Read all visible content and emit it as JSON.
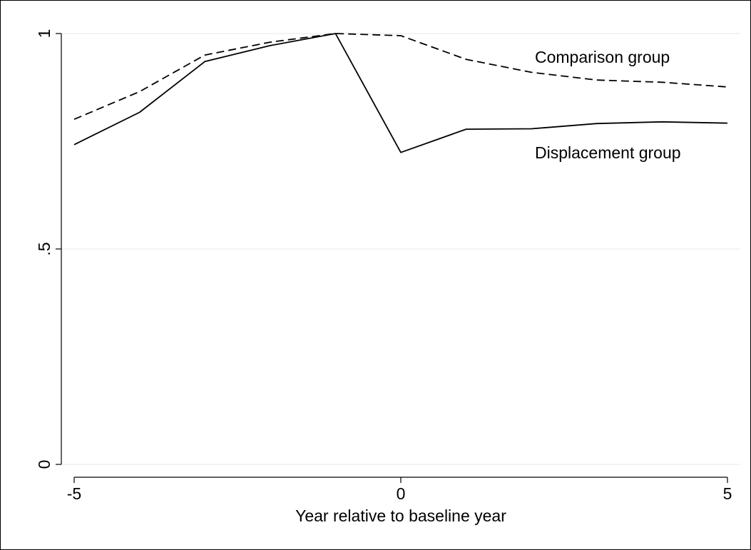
{
  "chart_data": {
    "type": "line",
    "xlabel": "Year relative to baseline year",
    "ylabel": "",
    "xlim": [
      -5,
      5
    ],
    "ylim": [
      0,
      1
    ],
    "x_ticks": [
      -5,
      0,
      5
    ],
    "x_tick_labels": [
      "-5",
      "0",
      "5"
    ],
    "y_ticks": [
      0,
      0.5,
      1
    ],
    "y_tick_labels": [
      "0",
      ".5",
      "1"
    ],
    "grid": "horizontal",
    "x": [
      -5,
      -4,
      -3,
      -2,
      -1,
      0,
      1,
      2,
      3,
      4,
      5
    ],
    "series": [
      {
        "name": "Comparison group",
        "style": "dashed",
        "values": [
          0.801,
          0.865,
          0.95,
          0.98,
          1.0,
          0.995,
          0.94,
          0.91,
          0.892,
          0.887,
          0.876
        ]
      },
      {
        "name": "Displacement group",
        "style": "solid",
        "values": [
          0.742,
          0.817,
          0.935,
          0.972,
          1.0,
          0.724,
          0.778,
          0.779,
          0.791,
          0.795,
          0.792
        ]
      }
    ],
    "colors": {
      "line": "#000000",
      "grid": "#eaf2f3",
      "frame": "#000000",
      "background": "#ffffff"
    }
  }
}
